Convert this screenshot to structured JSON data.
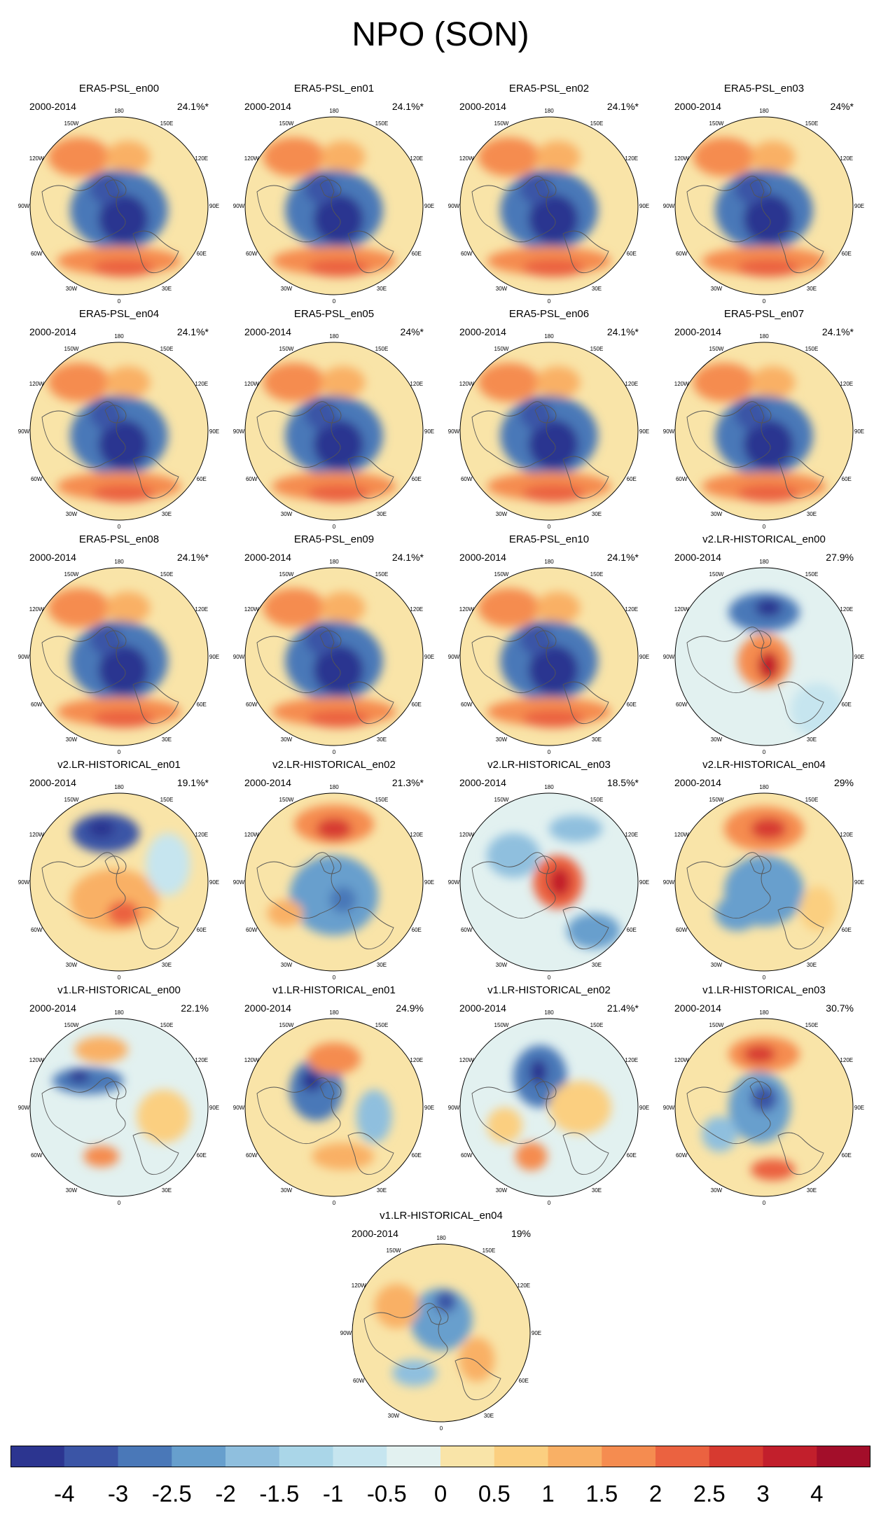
{
  "title": "NPO (SON)",
  "longitude_labels": [
    "180",
    "150E",
    "120E",
    "90E",
    "60E",
    "30E",
    "0",
    "30W",
    "60W",
    "90W",
    "120W",
    "150W"
  ],
  "panels": [
    {
      "title": "ERA5-PSL_en00",
      "period": "2000-2014",
      "variance": "24.1%*",
      "pattern": "era5"
    },
    {
      "title": "ERA5-PSL_en01",
      "period": "2000-2014",
      "variance": "24.1%*",
      "pattern": "era5"
    },
    {
      "title": "ERA5-PSL_en02",
      "period": "2000-2014",
      "variance": "24.1%*",
      "pattern": "era5"
    },
    {
      "title": "ERA5-PSL_en03",
      "period": "2000-2014",
      "variance": "24%*",
      "pattern": "era5"
    },
    {
      "title": "ERA5-PSL_en04",
      "period": "2000-2014",
      "variance": "24.1%*",
      "pattern": "era5"
    },
    {
      "title": "ERA5-PSL_en05",
      "period": "2000-2014",
      "variance": "24%*",
      "pattern": "era5"
    },
    {
      "title": "ERA5-PSL_en06",
      "period": "2000-2014",
      "variance": "24.1%*",
      "pattern": "era5"
    },
    {
      "title": "ERA5-PSL_en07",
      "period": "2000-2014",
      "variance": "24.1%*",
      "pattern": "era5"
    },
    {
      "title": "ERA5-PSL_en08",
      "period": "2000-2014",
      "variance": "24.1%*",
      "pattern": "era5"
    },
    {
      "title": "ERA5-PSL_en09",
      "period": "2000-2014",
      "variance": "24.1%*",
      "pattern": "era5"
    },
    {
      "title": "ERA5-PSL_en10",
      "period": "2000-2014",
      "variance": "24.1%*",
      "pattern": "era5"
    },
    {
      "title": "v2.LR-HISTORICAL_en00",
      "period": "2000-2014",
      "variance": "27.9%",
      "pattern": "v2en00"
    },
    {
      "title": "v2.LR-HISTORICAL_en01",
      "period": "2000-2014",
      "variance": "19.1%*",
      "pattern": "v2en01"
    },
    {
      "title": "v2.LR-HISTORICAL_en02",
      "period": "2000-2014",
      "variance": "21.3%*",
      "pattern": "v2en02"
    },
    {
      "title": "v2.LR-HISTORICAL_en03",
      "period": "2000-2014",
      "variance": "18.5%*",
      "pattern": "v2en03"
    },
    {
      "title": "v2.LR-HISTORICAL_en04",
      "period": "2000-2014",
      "variance": "29%",
      "pattern": "v2en04"
    },
    {
      "title": "v1.LR-HISTORICAL_en00",
      "period": "2000-2014",
      "variance": "22.1%",
      "pattern": "v1en00"
    },
    {
      "title": "v1.LR-HISTORICAL_en01",
      "period": "2000-2014",
      "variance": "24.9%",
      "pattern": "v1en01"
    },
    {
      "title": "v1.LR-HISTORICAL_en02",
      "period": "2000-2014",
      "variance": "21.4%*",
      "pattern": "v1en02"
    },
    {
      "title": "v1.LR-HISTORICAL_en03",
      "period": "2000-2014",
      "variance": "30.7%",
      "pattern": "v1en03"
    },
    {
      "title": "v1.LR-HISTORICAL_en04",
      "period": "2000-2014",
      "variance": "19%",
      "pattern": "v1en04"
    }
  ],
  "colorbar": {
    "labels": [
      "-4",
      "-3",
      "-2.5",
      "-2",
      "-1.5",
      "-1",
      "-0.5",
      "0",
      "0.5",
      "1",
      "1.5",
      "2",
      "2.5",
      "3",
      "4"
    ],
    "colors": [
      "#2c3590",
      "#3b55a6",
      "#4a78b8",
      "#679fcd",
      "#8fbfde",
      "#aad6e8",
      "#c6e5ef",
      "#e2f1f0",
      "#f9e4a8",
      "#fbcf80",
      "#f9b065",
      "#f58c50",
      "#eb6240",
      "#d73a30",
      "#c21f2c",
      "#a30e2a"
    ]
  },
  "anomaly_colors": {
    "neg": [
      "#8fbfde",
      "#679fcd",
      "#4a78b8",
      "#3b55a6",
      "#2c3590"
    ],
    "pos": [
      "#fbcf80",
      "#f9b065",
      "#f58c50",
      "#eb6240",
      "#d73a30",
      "#c21f2c"
    ],
    "light_blue": "#c6e5ef",
    "near_zero_blue": "#e2f1f0",
    "near_zero_yellow": "#f9e4a8"
  }
}
